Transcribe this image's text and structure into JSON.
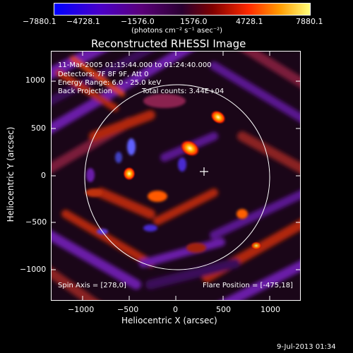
{
  "colorbar": {
    "ticks": [
      "−7880.1",
      "−4728.1",
      "−1576.0",
      "1576.0",
      "4728.1",
      "7880.1"
    ],
    "units": "(photons cm⁻² s⁻¹ asec⁻²)"
  },
  "image": {
    "title": "Reconstructed RHESSI Image",
    "time_range": "11-Mar-2005 01:15:44.000 to 01:24:40.000",
    "detectors": "Detectors: 7F 8F 9F, Att 0",
    "energy_range": "Energy Range: 6.0 - 25.0 keV",
    "method": "Back Projection",
    "total_counts": "Total counts: 3.44E+04",
    "spin_axis": "Spin Axis = [278,0]",
    "flare_position": "Flare Position = [-475,18]"
  },
  "axes": {
    "xlabel": "Heliocentric X (arcsec)",
    "ylabel": "Heliocentric Y (arcsec)",
    "xticks": [
      "−1000",
      "−500",
      "0",
      "500",
      "1000"
    ],
    "yticks": [
      "1000",
      "500",
      "0",
      "−500",
      "−1000"
    ]
  },
  "footer": {
    "date": "9-Jul-2013 01:34"
  }
}
